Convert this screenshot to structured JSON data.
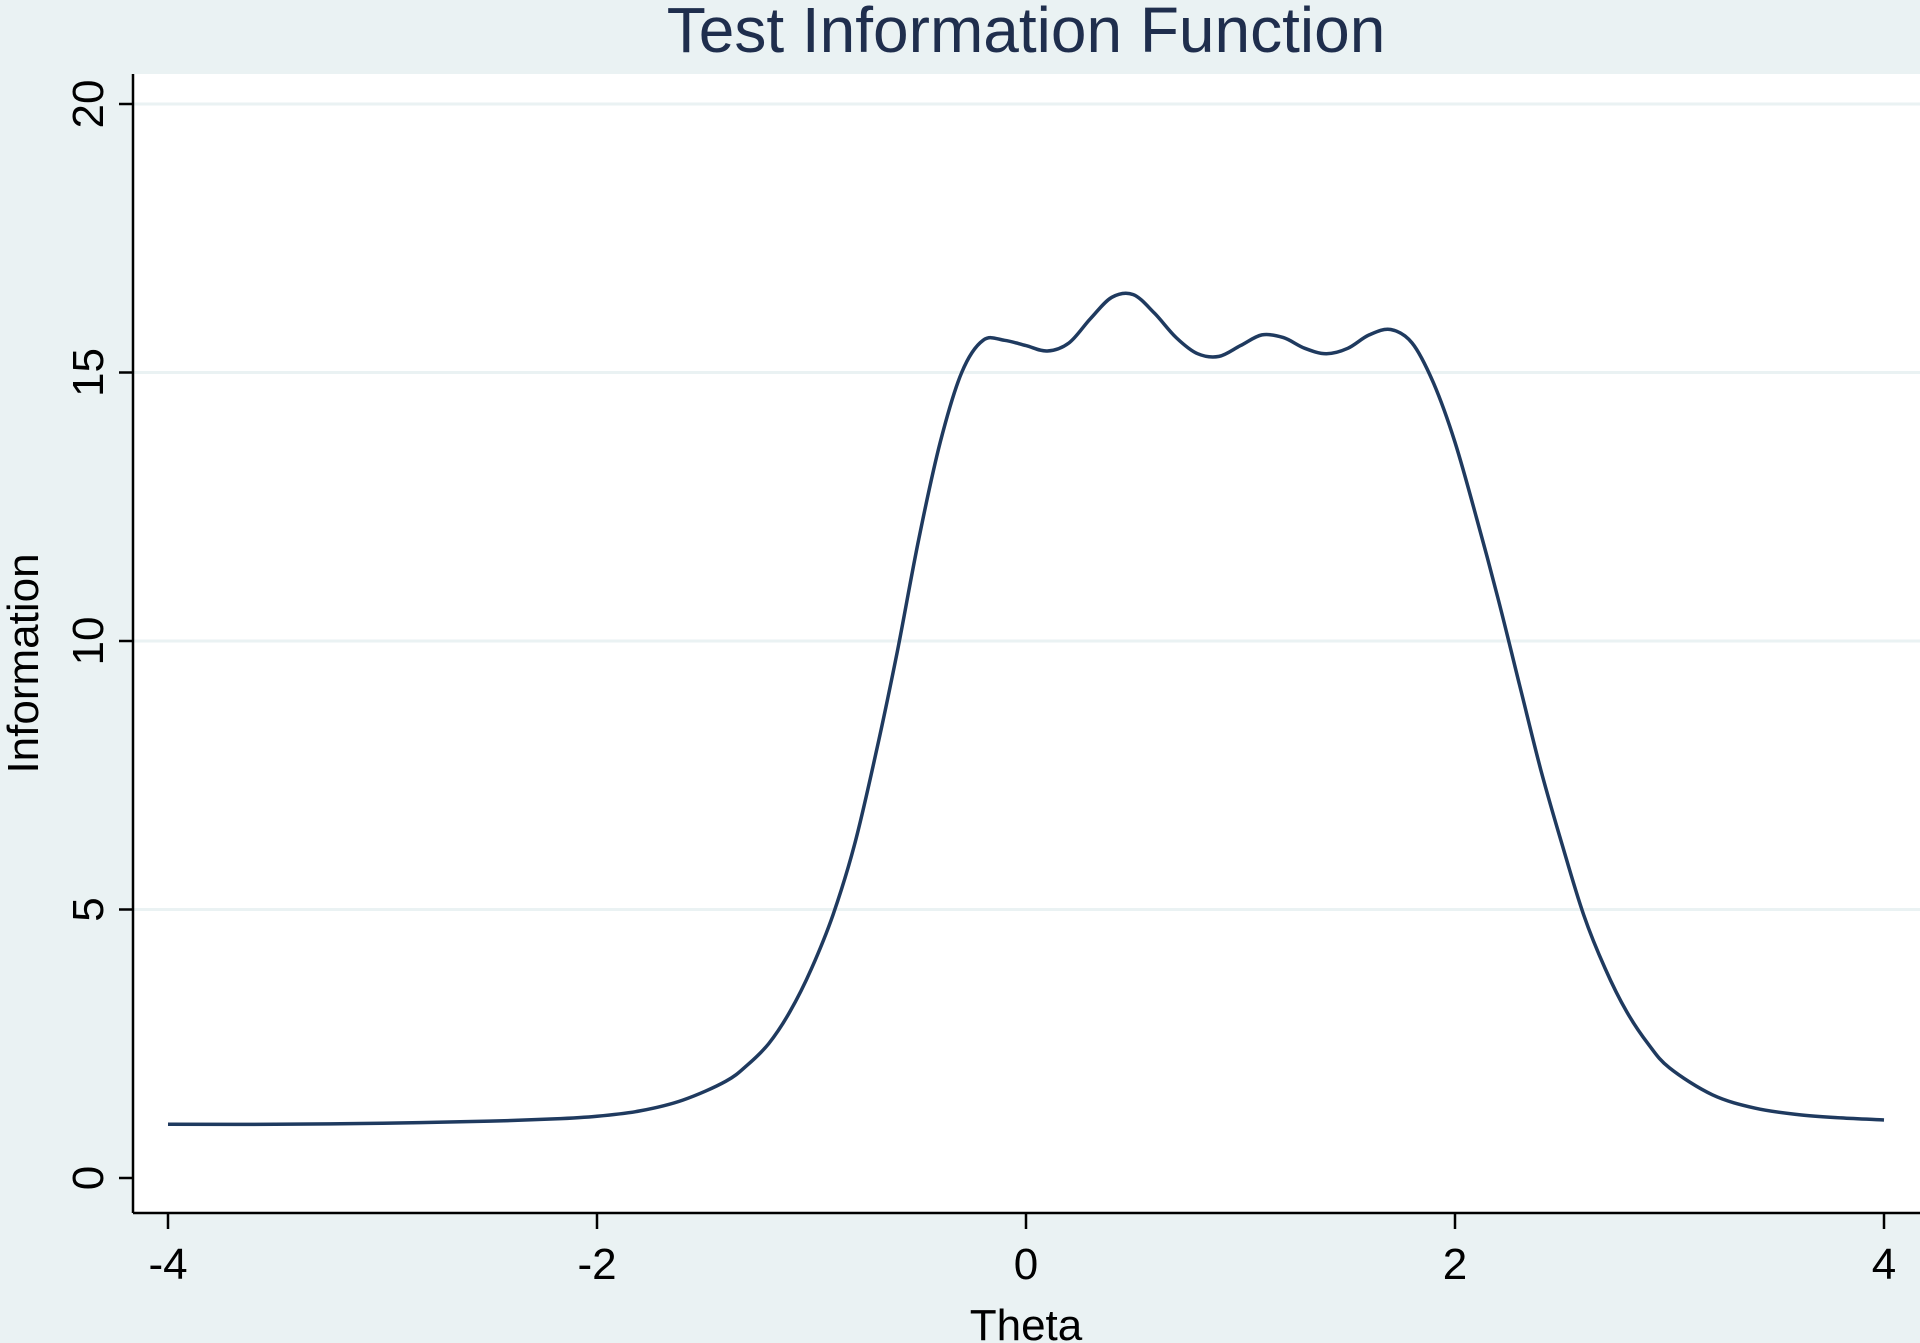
{
  "chart_data": {
    "type": "line",
    "title": "Test Information Function",
    "xlabel": "Theta",
    "ylabel": "Information",
    "xlim": [
      -4,
      4
    ],
    "ylim": [
      0,
      20
    ],
    "xticks": [
      -4,
      -2,
      0,
      2,
      4
    ],
    "yticks": [
      0,
      5,
      10,
      15,
      20
    ],
    "xtick_labels": [
      "-4",
      "-2",
      "0",
      "2",
      "4"
    ],
    "ytick_labels": [
      "0",
      "5",
      "10",
      "15",
      "20"
    ],
    "grid": "horizontal",
    "legend": "none",
    "colors": {
      "background": "#eaf2f3",
      "plot_area": "#ffffff",
      "line": "#1f3a5f",
      "title": "#1f2e4d"
    },
    "series": [
      {
        "x": [
          -4.0,
          -3.5,
          -3.0,
          -2.5,
          -2.2,
          -2.0,
          -1.8,
          -1.6,
          -1.4,
          -1.3,
          -1.2,
          -1.1,
          -1.0,
          -0.9,
          -0.8,
          -0.7,
          -0.6,
          -0.5,
          -0.4,
          -0.3,
          -0.2,
          -0.1,
          0.0,
          0.1,
          0.2,
          0.3,
          0.4,
          0.5,
          0.6,
          0.7,
          0.8,
          0.9,
          1.0,
          1.1,
          1.2,
          1.3,
          1.4,
          1.5,
          1.6,
          1.7,
          1.8,
          1.9,
          2.0,
          2.1,
          2.2,
          2.3,
          2.4,
          2.5,
          2.6,
          2.7,
          2.8,
          2.9,
          3.0,
          3.2,
          3.4,
          3.6,
          3.8,
          4.0
        ],
        "y": [
          1.0,
          1.0,
          1.02,
          1.06,
          1.1,
          1.15,
          1.25,
          1.45,
          1.8,
          2.1,
          2.5,
          3.1,
          3.9,
          4.9,
          6.2,
          7.9,
          9.8,
          11.9,
          13.7,
          15.0,
          15.6,
          15.6,
          15.5,
          15.4,
          15.55,
          16.0,
          16.4,
          16.45,
          16.1,
          15.65,
          15.35,
          15.3,
          15.5,
          15.7,
          15.65,
          15.45,
          15.35,
          15.45,
          15.7,
          15.8,
          15.55,
          14.8,
          13.7,
          12.3,
          10.8,
          9.2,
          7.6,
          6.2,
          4.9,
          3.9,
          3.1,
          2.5,
          2.05,
          1.55,
          1.3,
          1.18,
          1.12,
          1.08
        ]
      }
    ]
  }
}
